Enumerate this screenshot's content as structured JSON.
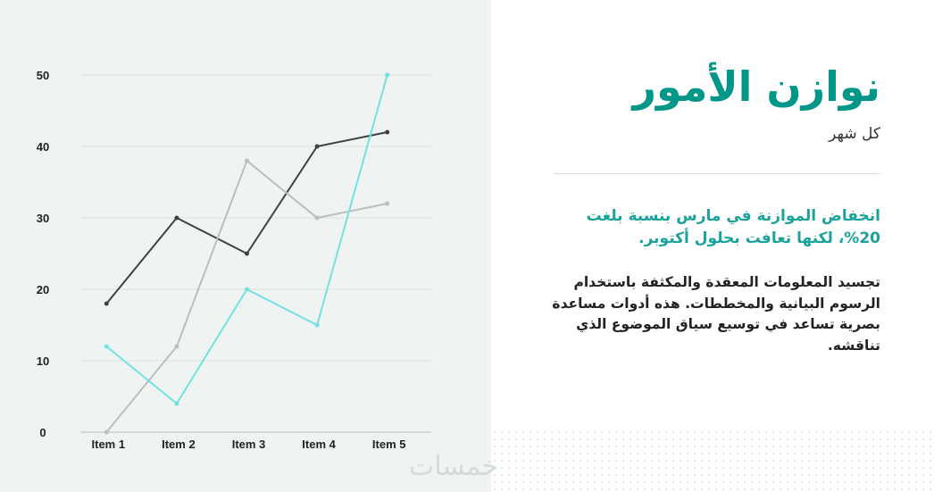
{
  "panel": {
    "title": "نوازن الأمور",
    "subtitle": "كل شهر",
    "highlight": "انخفاض الموازنة في مارس بنسبة بلغت 20%، لكنها تعافت بحلول أكتوبر.",
    "body": "تجسيد المعلومات المعقدة والمكثفة باستخدام الرسوم البيانية والمخططات. هذه أدوات مساعدة بصرية تساعد في توسيع سياق الموضوع الذي تناقشه."
  },
  "watermark": "خمسات",
  "chart_data": {
    "type": "line",
    "categories": [
      "Item 1",
      "Item 2",
      "Item 3",
      "Item 4",
      "Item 5"
    ],
    "ylim": [
      0,
      50
    ],
    "yticks": [
      "0",
      "10",
      "20",
      "30",
      "40",
      "50"
    ],
    "grid": true,
    "series": [
      {
        "values": [
          18,
          30,
          25,
          40,
          42
        ],
        "color": "#3d4246"
      },
      {
        "values": [
          0,
          12,
          38,
          30,
          32
        ],
        "color": "#bdbdbd"
      },
      {
        "values": [
          12,
          4,
          20,
          15,
          50
        ],
        "color": "#6fe3e0"
      }
    ]
  },
  "colors": {
    "accent": "#009688",
    "panel_bg": "#eff4f3"
  }
}
